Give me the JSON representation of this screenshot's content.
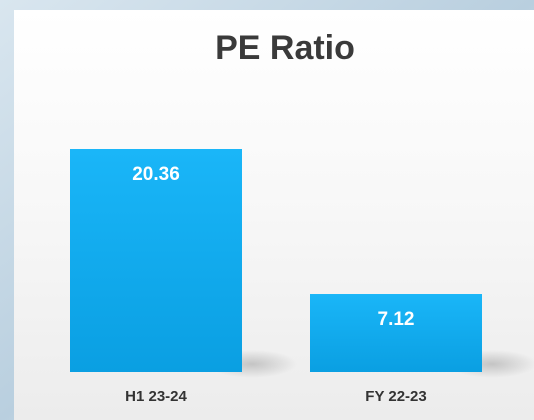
{
  "chart_data": {
    "type": "bar",
    "title": "PE Ratio",
    "categories": [
      "H1 23-24",
      "FY 22-23"
    ],
    "values": [
      20.36,
      7.12
    ],
    "color": "#16b0f4"
  }
}
